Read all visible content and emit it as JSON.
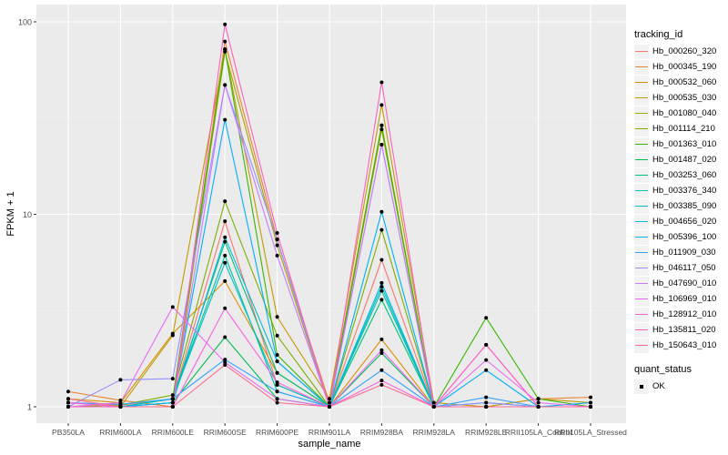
{
  "chart_data": {
    "type": "line",
    "xlabel": "sample_name",
    "ylabel": "FPKM + 1",
    "yscale": "log10",
    "ylim": [
      0.95,
      120
    ],
    "yticks": [
      "1",
      "10",
      "100"
    ],
    "grid": true,
    "legend_position": "right",
    "categories": [
      "PB350LA",
      "RRIM600LA",
      "RRIM600LE",
      "RRIM600SE",
      "RRIM600PE",
      "RRIM901LA",
      "RRIM928BA",
      "RRIM928LA",
      "RRIM928LE",
      "RRII105LA_Control",
      "RRII105LA_Stressed"
    ],
    "series": [
      {
        "name": "Hb_000260_320",
        "color": "#F8766D",
        "values": [
          1.05,
          1.02,
          1.1,
          9.2,
          1.3,
          1.0,
          5.8,
          1.0,
          1.0,
          1.0,
          1.0
        ]
      },
      {
        "name": "Hb_000345_190",
        "color": "#EA8331",
        "values": [
          1.2,
          1.08,
          1.0,
          79,
          7.4,
          1.05,
          29,
          1.0,
          1.0,
          1.1,
          1.12
        ]
      },
      {
        "name": "Hb_000532_060",
        "color": "#D89000",
        "values": [
          1.1,
          1.05,
          2.4,
          4.5,
          1.5,
          1.0,
          2.24,
          1.0,
          1.0,
          1.0,
          1.0
        ]
      },
      {
        "name": "Hb_000535_030",
        "color": "#C09B00",
        "values": [
          1.0,
          1.0,
          2.35,
          72,
          2.93,
          1.1,
          37,
          1.05,
          1.0,
          1.1,
          1.05
        ]
      },
      {
        "name": "Hb_001080_040",
        "color": "#A3A500",
        "values": [
          1.0,
          1.0,
          1.0,
          70,
          6.9,
          1.0,
          27.6,
          1.0,
          1.0,
          1.0,
          1.0
        ]
      },
      {
        "name": "Hb_001114_210",
        "color": "#7CAE00",
        "values": [
          1.0,
          1.02,
          1.15,
          11.7,
          2.34,
          1.0,
          8.3,
          1.0,
          1.0,
          1.0,
          1.0
        ]
      },
      {
        "name": "Hb_001363_010",
        "color": "#39B600",
        "values": [
          1.0,
          1.0,
          1.1,
          72,
          1.86,
          1.0,
          29,
          1.0,
          2.9,
          1.1,
          1.0
        ]
      },
      {
        "name": "Hb_001487_020",
        "color": "#00BB4E",
        "values": [
          1.0,
          1.0,
          1.05,
          2.3,
          1.1,
          1.0,
          1.9,
          1.0,
          1.0,
          1.0,
          1.0
        ]
      },
      {
        "name": "Hb_003253_060",
        "color": "#00BF7D",
        "values": [
          1.0,
          1.0,
          1.1,
          7.2,
          1.5,
          1.0,
          3.6,
          1.0,
          1.0,
          1.0,
          1.0
        ]
      },
      {
        "name": "Hb_003376_340",
        "color": "#00C1A3",
        "values": [
          1.0,
          1.0,
          1.1,
          6.1,
          1.2,
          1.0,
          4.0,
          1.0,
          1.0,
          1.0,
          1.0
        ]
      },
      {
        "name": "Hb_003385_090",
        "color": "#00BFC4",
        "values": [
          1.0,
          1.0,
          1.1,
          5.6,
          1.3,
          1.0,
          4.2,
          1.0,
          1.05,
          1.0,
          1.0
        ]
      },
      {
        "name": "Hb_004656_020",
        "color": "#00BAE0",
        "values": [
          1.0,
          1.0,
          1.05,
          7.6,
          1.72,
          1.0,
          4.4,
          1.0,
          1.0,
          1.0,
          1.0
        ]
      },
      {
        "name": "Hb_005396_100",
        "color": "#00B0F6",
        "values": [
          1.0,
          1.0,
          1.05,
          31,
          1.72,
          1.0,
          10.3,
          1.0,
          1.55,
          1.0,
          1.05
        ]
      },
      {
        "name": "Hb_011909_030",
        "color": "#35A2FF",
        "values": [
          1.05,
          1.03,
          1.1,
          1.76,
          1.2,
          1.0,
          1.55,
          1.0,
          1.12,
          1.0,
          1.0
        ]
      },
      {
        "name": "Hb_046117_050",
        "color": "#9590FF",
        "values": [
          1.0,
          1.38,
          1.4,
          47,
          7.4,
          1.0,
          23,
          1.0,
          1.05,
          1.0,
          1.0
        ]
      },
      {
        "name": "Hb_047690_010",
        "color": "#C77CFF",
        "values": [
          1.0,
          1.0,
          1.0,
          47,
          6.1,
          1.0,
          23,
          1.0,
          1.0,
          1.0,
          1.0
        ]
      },
      {
        "name": "Hb_106969_010",
        "color": "#E76BF3",
        "values": [
          1.0,
          1.05,
          3.3,
          1.7,
          1.1,
          1.0,
          1.97,
          1.0,
          1.75,
          1.05,
          1.0
        ]
      },
      {
        "name": "Hb_128912_010",
        "color": "#FA62DB",
        "values": [
          1.05,
          1.0,
          1.0,
          3.25,
          1.34,
          1.0,
          1.37,
          1.0,
          2.1,
          1.0,
          1.0
        ]
      },
      {
        "name": "Hb_135811_020",
        "color": "#FF62BC",
        "values": [
          1.0,
          1.0,
          1.0,
          97,
          8.0,
          1.0,
          48.5,
          1.0,
          2.1,
          1.0,
          1.0
        ]
      },
      {
        "name": "Hb_150643_010",
        "color": "#FF6C91",
        "values": [
          1.1,
          1.0,
          1.0,
          1.65,
          1.05,
          1.0,
          1.3,
          1.0,
          1.0,
          1.0,
          1.0
        ]
      }
    ],
    "legend": {
      "color_title": "tracking_id",
      "shape_title": "quant_status",
      "shape_items": [
        "OK"
      ]
    }
  }
}
